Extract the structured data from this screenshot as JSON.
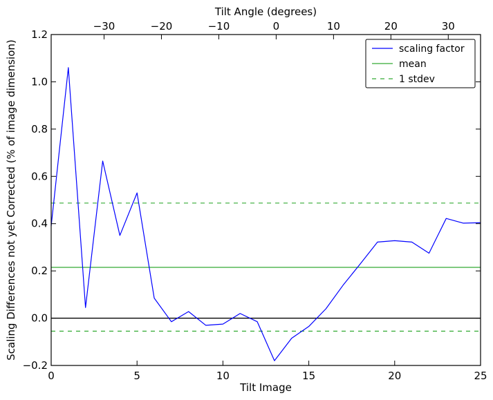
{
  "chart_data": {
    "type": "line",
    "xlabel": "Tilt Image",
    "ylabel": "Scaling Differences not yet Corrected (% of image dimension)",
    "top_xlabel": "Tilt Angle (degrees)",
    "xlim": [
      0,
      25
    ],
    "ylim": [
      -0.2,
      1.2
    ],
    "x_ticks": [
      0,
      5,
      10,
      15,
      20,
      25
    ],
    "y_ticks": [
      -0.2,
      0.0,
      0.2,
      0.4,
      0.6,
      0.8,
      1.0,
      1.2
    ],
    "y_tick_labels": [
      "−0.2",
      "0.0",
      "0.2",
      "0.4",
      "0.6",
      "0.8",
      "1.0",
      "1.2"
    ],
    "top_ticks": [
      {
        "x": 3.08,
        "label": "−30"
      },
      {
        "x": 6.42,
        "label": "−20"
      },
      {
        "x": 9.76,
        "label": "−10"
      },
      {
        "x": 13.1,
        "label": "0"
      },
      {
        "x": 16.44,
        "label": "10"
      },
      {
        "x": 19.78,
        "label": "20"
      },
      {
        "x": 23.12,
        "label": "30"
      }
    ],
    "series": [
      {
        "name": "scaling factor",
        "color": "#0000ff",
        "x": [
          0,
          1,
          2,
          3,
          4,
          5,
          6,
          7,
          8,
          9,
          10,
          11,
          12,
          13,
          14,
          15,
          16,
          17,
          18,
          19,
          20,
          21,
          22,
          23,
          24,
          25
        ],
        "y": [
          0.39,
          1.06,
          0.045,
          0.665,
          0.35,
          0.53,
          0.085,
          -0.015,
          0.028,
          -0.03,
          -0.025,
          0.02,
          -0.015,
          -0.18,
          -0.085,
          -0.035,
          0.04,
          0.14,
          0.23,
          0.322,
          0.328,
          0.322,
          0.275,
          0.422,
          0.402,
          0.404
        ]
      }
    ],
    "reference_lines": [
      {
        "name": "mean",
        "y": 0.215,
        "color": "#33aa33",
        "style": "solid"
      },
      {
        "name": "1 stdev",
        "y": 0.487,
        "color": "#33aa33",
        "style": "dashed"
      },
      {
        "name": "",
        "y": -0.055,
        "color": "#33aa33",
        "style": "dashed"
      },
      {
        "name": "",
        "y": 0.0,
        "color": "#000000",
        "style": "solid"
      }
    ],
    "legend": {
      "placement": "top-right",
      "entries": [
        {
          "label": "scaling factor",
          "color": "#0000ff",
          "style": "solid"
        },
        {
          "label": "mean",
          "color": "#33aa33",
          "style": "solid"
        },
        {
          "label": "1 stdev",
          "color": "#33aa33",
          "style": "dashed"
        }
      ]
    },
    "grid": false
  }
}
